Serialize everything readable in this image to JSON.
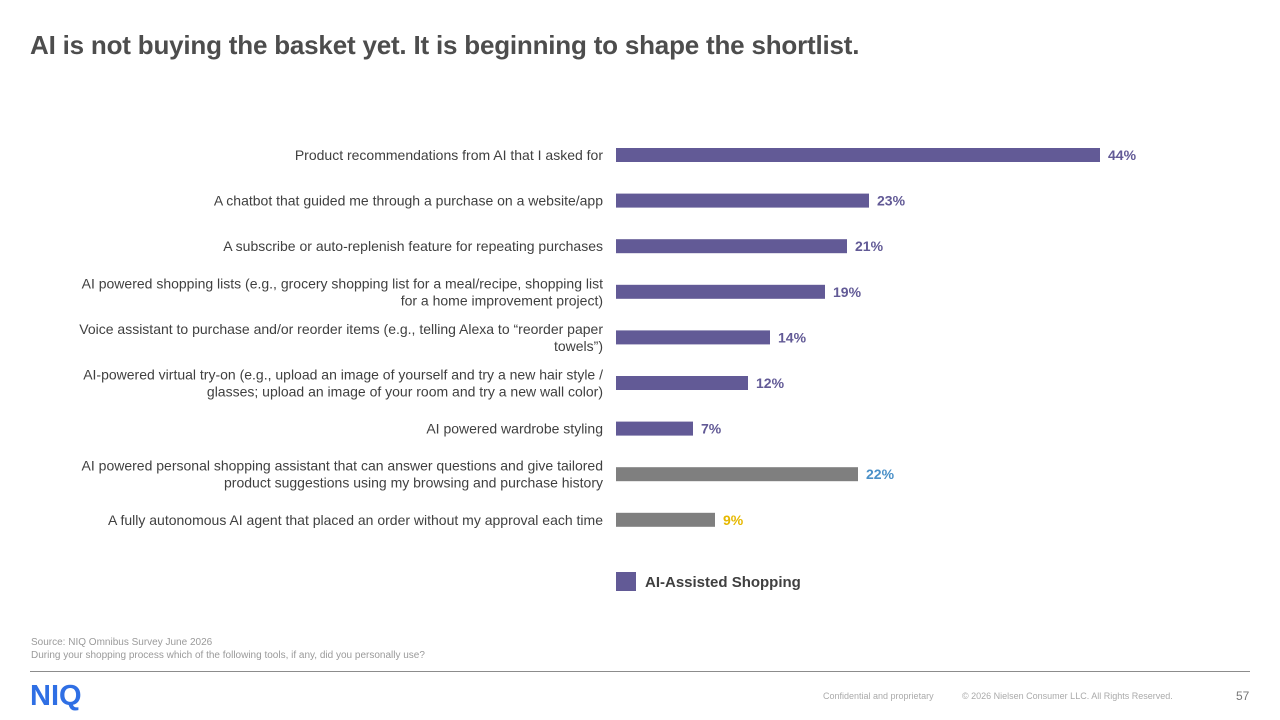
{
  "title": "AI is not buying the basket yet. It is beginning to shape the shortlist.",
  "chart_data": {
    "type": "bar",
    "orientation": "horizontal",
    "categories": [
      [
        "Product recommendations from AI that I asked for"
      ],
      [
        "A chatbot that guided me through a purchase on a website/app"
      ],
      [
        "A subscribe or auto-replenish feature for repeating purchases"
      ],
      [
        "AI powered shopping lists (e.g., grocery shopping list for a meal/recipe, shopping list",
        "for a home improvement project)"
      ],
      [
        "Voice assistant to purchase and/or reorder items (e.g., telling Alexa to “reorder paper",
        "towels”)"
      ],
      [
        "AI-powered virtual try-on (e.g., upload an image of yourself and try a new hair style /",
        "glasses; upload an image of your room and try a new wall color)"
      ],
      [
        "AI powered wardrobe styling"
      ],
      [
        "AI powered personal shopping assistant that can answer questions and give tailored",
        "product suggestions using my browsing and purchase history"
      ],
      [
        "A fully autonomous AI agent that placed an order without my approval each time"
      ]
    ],
    "values": [
      44,
      23,
      21,
      19,
      14,
      12,
      7,
      22,
      9
    ],
    "value_labels": [
      "44%",
      "23%",
      "21%",
      "19%",
      "14%",
      "12%",
      "7%",
      "22%",
      "9%"
    ],
    "bar_colors": [
      "#625a96",
      "#625a96",
      "#625a96",
      "#625a96",
      "#625a96",
      "#625a96",
      "#625a96",
      "#7f7f7f",
      "#7f7f7f"
    ],
    "label_colors": [
      "#625a96",
      "#625a96",
      "#625a96",
      "#625a96",
      "#625a96",
      "#625a96",
      "#625a96",
      "#4a90c8",
      "#e6b800"
    ],
    "xlim": [
      0,
      50
    ],
    "legend": {
      "position": "bottom",
      "entries": [
        {
          "label": "AI-Assisted Shopping",
          "color": "#625a96"
        }
      ]
    },
    "grid": false
  },
  "source": {
    "line1": "Source: NIQ Omnibus Survey June 2026",
    "line2": "During your shopping process which of the following tools, if any, did you personally use?"
  },
  "footer": {
    "logo": "NIQ",
    "confidential": "Confidential and proprietary",
    "copyright": "© 2026 Nielsen Consumer LLC. All Rights Reserved.",
    "page_number": "57"
  }
}
